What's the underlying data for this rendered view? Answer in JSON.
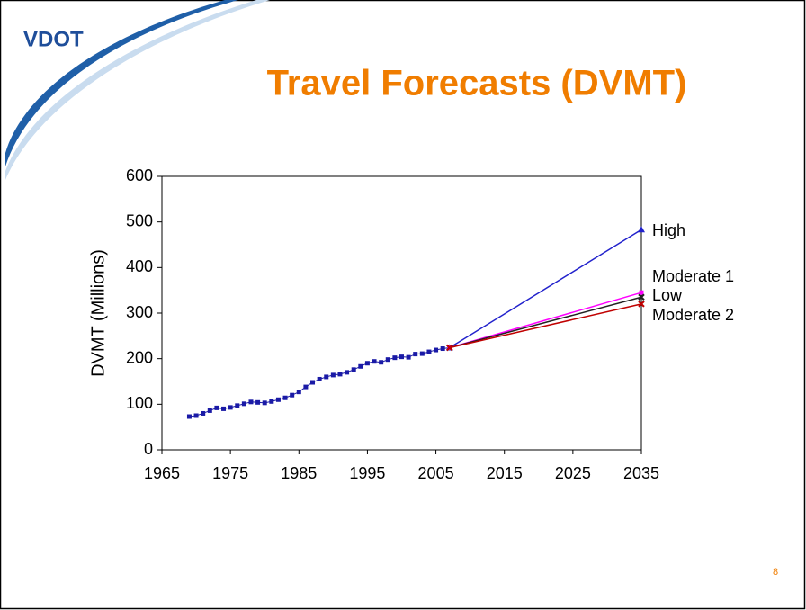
{
  "logo": "VDOT",
  "page_number": "8",
  "chart_data": {
    "type": "line",
    "title": "Travel Forecasts (DVMT)",
    "y_label": "DVMT (Millions)",
    "xlim": [
      1965,
      2035
    ],
    "xticks": [
      1965,
      1975,
      1985,
      1995,
      2005,
      2015,
      2025,
      2035
    ],
    "ylim": [
      0,
      600
    ],
    "yticks": [
      0,
      100,
      200,
      300,
      400,
      500,
      600
    ],
    "grid": false,
    "series": [
      {
        "color": "#1a1aa6",
        "marker": "square",
        "x": [
          1969,
          1970,
          1971,
          1972,
          1973,
          1974,
          1975,
          1976,
          1977,
          1978,
          1979,
          1980,
          1981,
          1982,
          1983,
          1984,
          1985,
          1986,
          1987,
          1988,
          1989,
          1990,
          1991,
          1992,
          1993,
          1994,
          1995,
          1996,
          1997,
          1998,
          1999,
          2000,
          2001,
          2002,
          2003,
          2004,
          2005,
          2006,
          2007
        ],
        "values": [
          73,
          75,
          80,
          86,
          92,
          90,
          93,
          97,
          101,
          105,
          104,
          103,
          106,
          110,
          114,
          120,
          127,
          138,
          148,
          155,
          160,
          164,
          166,
          170,
          176,
          183,
          190,
          194,
          192,
          198,
          202,
          204,
          203,
          210,
          211,
          215,
          219,
          222,
          224
        ]
      },
      {
        "name": "High",
        "color": "#2222cc",
        "marker": "triangle",
        "x": [
          2007,
          2035
        ],
        "values": [
          224,
          483
        ]
      },
      {
        "name": "Moderate 1",
        "color": "#ff00ff",
        "marker": "square",
        "x": [
          2007,
          2035
        ],
        "values": [
          224,
          345
        ]
      },
      {
        "name": "Low",
        "color": "#222222",
        "marker": "cross",
        "x": [
          2007,
          2035
        ],
        "values": [
          224,
          335
        ]
      },
      {
        "name": "Moderate 2",
        "color": "#c00000",
        "marker": "cross",
        "x": [
          2007,
          2035
        ],
        "values": [
          224,
          320
        ]
      }
    ]
  }
}
